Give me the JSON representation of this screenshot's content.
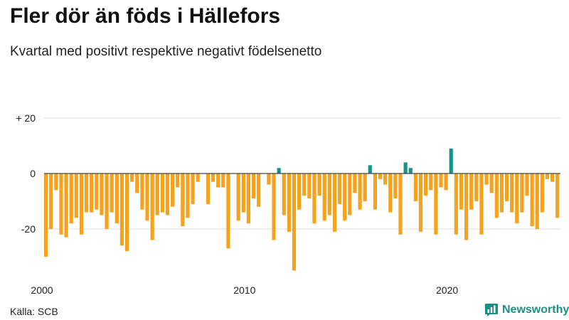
{
  "header": {
    "title": "Fler dör än föds i Hällefors",
    "subtitle": "Kvartal med positivt respektive negativt födelsenetto"
  },
  "footer": {
    "source": "Källa: SCB",
    "brand": "Newsworthy"
  },
  "colors": {
    "negative": "#f5a31f",
    "positive": "#1b9188",
    "grid": "#dcdcdc",
    "zero": "#444444",
    "brand": "#1b8f86"
  },
  "chart_data": {
    "type": "bar",
    "title": "Fler dör än föds i Hällefors",
    "subtitle": "Kvartal med positivt respektive negativt födelsenetto",
    "xlabel": "",
    "ylabel": "",
    "ylim": [
      -35,
      25
    ],
    "yticks": [
      {
        "value": 20,
        "label": "+ 20"
      },
      {
        "value": 0,
        "label": "0"
      },
      {
        "value": -20,
        "label": "-20"
      }
    ],
    "xticks": [
      {
        "year": 2000,
        "label": "2000"
      },
      {
        "year": 2010,
        "label": "2010"
      },
      {
        "year": 2020,
        "label": "2020"
      }
    ],
    "start_year": 2000,
    "start_quarter": 1,
    "series": [
      {
        "name": "Födelsenetto",
        "values": [
          -30,
          -20,
          -6,
          -22,
          -23,
          -18,
          -16,
          -22,
          -14,
          -14,
          -13,
          -15,
          -20,
          -14,
          -18,
          -26,
          -28,
          -3,
          -7,
          -13,
          -17,
          -24,
          -15,
          -14,
          -15,
          -12,
          -5,
          -19,
          -16,
          -11,
          -3,
          0,
          -11,
          -3,
          -5,
          -5,
          -27,
          0,
          -17,
          -14,
          -18,
          -9,
          -12,
          0,
          -4,
          -24,
          2,
          -15,
          -21,
          -35,
          -13,
          -8,
          -9,
          -18,
          -8,
          -17,
          -15,
          -21,
          -11,
          -17,
          -15,
          -7,
          -13,
          -10,
          3,
          -13,
          -2,
          -4,
          -14,
          -9,
          -22,
          4,
          2,
          -10,
          -21,
          -8,
          -6,
          -22,
          -5,
          -6,
          9,
          -22,
          -13,
          -24,
          -13,
          -10,
          -22,
          -4,
          -7,
          -16,
          -14,
          -10,
          -14,
          -18,
          -14,
          -8,
          -19,
          -20,
          -14,
          -2,
          -3,
          -16
        ]
      }
    ]
  }
}
